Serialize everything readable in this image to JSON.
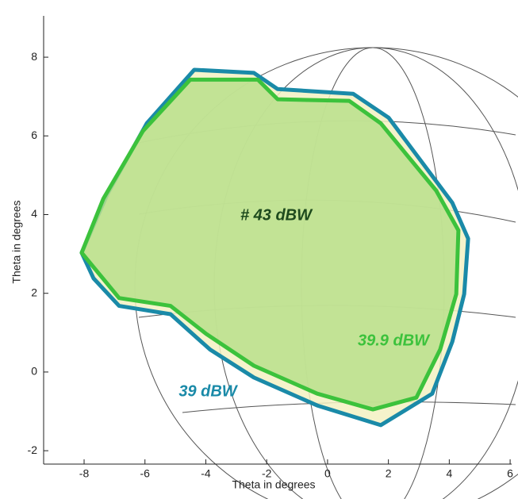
{
  "chart_data": {
    "type": "footprint",
    "xlabel": "Theta in degrees",
    "ylabel": "Theta in degrees",
    "xlim": [
      -9.33,
      6.05
    ],
    "ylim": [
      -2.34,
      9.05
    ],
    "xticks": [
      -8,
      -6,
      -4,
      -2,
      0,
      2,
      4,
      6
    ],
    "yticks": [
      -2,
      0,
      2,
      4,
      6,
      8
    ],
    "annotation": "# 43 dBW",
    "series": [
      {
        "name": "39 dBW",
        "color": "#1a8aa8",
        "fill": "#f3f1c2",
        "x": [
          -8.08,
          -7.24,
          -5.94,
          -4.38,
          -2.42,
          -1.64,
          0.84,
          2.01,
          4.1,
          4.62,
          4.49,
          4.1,
          3.44,
          1.75,
          -0.34,
          -2.42,
          -3.86,
          -5.16,
          -6.85,
          -7.69
        ],
        "y": [
          3.03,
          4.51,
          6.32,
          7.68,
          7.6,
          7.19,
          7.07,
          6.46,
          4.3,
          3.39,
          1.98,
          0.77,
          -0.55,
          -1.35,
          -0.85,
          -0.14,
          0.57,
          1.47,
          1.68,
          2.38
        ]
      },
      {
        "name": "39.9 dBW",
        "color": "#3cc23c",
        "fill": "#b8df8c",
        "x": [
          -8.08,
          -7.37,
          -6.07,
          -4.51,
          -2.29,
          -1.64,
          0.71,
          1.75,
          3.57,
          4.3,
          4.23,
          3.7,
          2.92,
          1.49,
          -0.34,
          -2.42,
          -3.99,
          -5.16,
          -6.85
        ],
        "y": [
          3.03,
          4.4,
          6.12,
          7.43,
          7.43,
          6.93,
          6.89,
          6.32,
          4.61,
          3.6,
          1.98,
          0.57,
          -0.65,
          -0.95,
          -0.55,
          0.16,
          0.97,
          1.68,
          1.88
        ]
      }
    ]
  }
}
